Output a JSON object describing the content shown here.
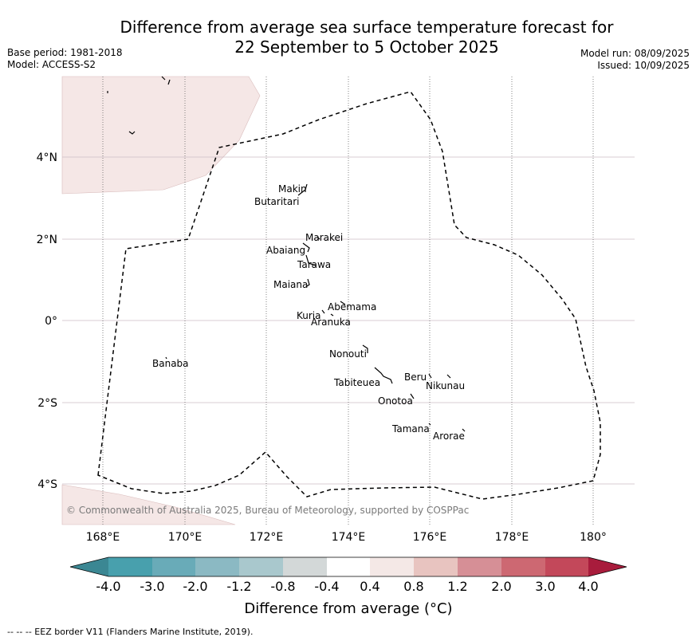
{
  "title_line1": "Difference from average sea surface temperature forecast for",
  "title_line2": "22 September to 5 October 2025",
  "meta_left": [
    "Base period: 1981-2018",
    "Model: ACCESS-S2"
  ],
  "meta_right": [
    "Model run: 08/09/2025",
    "Issued: 10/09/2025"
  ],
  "lat_ticks": [
    "4°N",
    "2°N",
    "0°",
    "2°S",
    "4°S"
  ],
  "lon_ticks": [
    "168°E",
    "170°E",
    "172°E",
    "174°E",
    "176°E",
    "178°E",
    "180°"
  ],
  "islands": [
    "Makin",
    "Butaritari",
    "Marakei",
    "Abaiang",
    "Tarawa",
    "Maiana",
    "Abemama",
    "Kuria",
    "Aranuka",
    "Nonouti",
    "Banaba",
    "Beru",
    "Nikunau",
    "Tabiteuea",
    "Onotoa",
    "Tamana",
    "Arorae"
  ],
  "credit": "© Commonwealth of Australia 2025, Bureau of Meteorology, supported by COSPPac",
  "colorbar": {
    "labels": [
      "-4.0",
      "-3.0",
      "-2.0",
      "-1.2",
      "-0.8",
      "-0.4",
      "0.4",
      "0.8",
      "1.2",
      "2.0",
      "3.0",
      "4.0"
    ],
    "colors": [
      "#3b8793",
      "#48a0ad",
      "#69abb8",
      "#8bb9c3",
      "#a9c8cd",
      "#d3d8d8",
      "#ffffff",
      "#f4e8e6",
      "#e8c4c0",
      "#d68f96",
      "#cd6872",
      "#c3485a",
      "#a81c3c"
    ],
    "title": "Difference from average (°C)"
  },
  "footer": "-- -- -- EEZ border V11 (Flanders Marine Institute, 2019).",
  "land_color": "#f5e7e6"
}
